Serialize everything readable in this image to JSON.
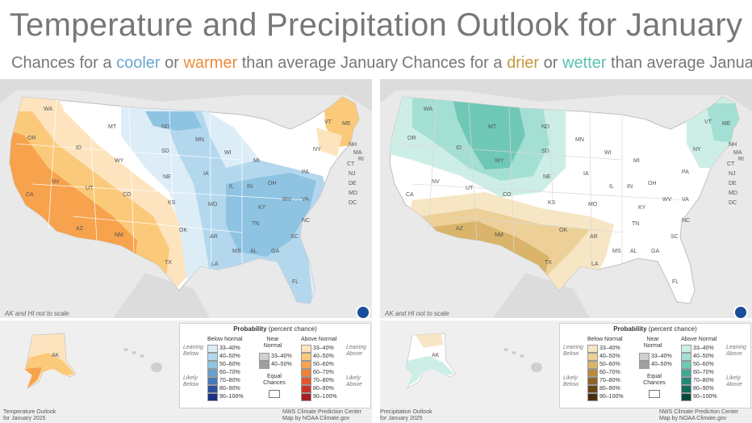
{
  "title": "Temperature and Precipitation Outlook for January",
  "temperature": {
    "subtitle": {
      "prefix": "Chances for a ",
      "cooler": "cooler",
      "or": " or ",
      "warmer": "warmer",
      "suffix": " than average January"
    },
    "note": "AK and HI not to scale",
    "credit_left": [
      "Temperature Outlook",
      "for January 2025"
    ],
    "credit_right": [
      "NWS Climate Prediction Center",
      "Map by NOAA Climate.gov"
    ],
    "state_labels": [
      "WA",
      "OR",
      "CA",
      "NV",
      "ID",
      "UT",
      "AZ",
      "NM",
      "CO",
      "WY",
      "MT",
      "ND",
      "SD",
      "NE",
      "KS",
      "OK",
      "TX",
      "MN",
      "IA",
      "MO",
      "AR",
      "LA",
      "WI",
      "IL",
      "IN",
      "MI",
      "OH",
      "KY",
      "TN",
      "MS",
      "AL",
      "GA",
      "FL",
      "SC",
      "NC",
      "VA",
      "WV",
      "PA",
      "NY",
      "VT",
      "ME",
      "NH",
      "MA",
      "CT",
      "NJ",
      "DE",
      "MD",
      "DC",
      "RI",
      "AK"
    ],
    "legend": {
      "title": "Probability",
      "title_suffix": "(percent chance)",
      "below_header": "Below Normal",
      "near_header": "Near Normal",
      "above_header": "Above Normal",
      "leaning_below": "Leaning Below",
      "likely_below": "Likely Below",
      "leaning_above": "Leaning Above",
      "likely_above": "Likely Above",
      "ranges": [
        "33–40%",
        "40–50%",
        "50–60%",
        "60–70%",
        "70–80%",
        "80–90%",
        "90–100%"
      ],
      "near_ranges": [
        "33–40%",
        "40–50%"
      ],
      "equal": "Equal Chances",
      "below_colors": [
        "#dcedf7",
        "#b3d8ee",
        "#8ec3e2",
        "#6a9fd0",
        "#4778b8",
        "#2e4f9e",
        "#1d2f86"
      ],
      "above_colors": [
        "#fde4bf",
        "#fbc97a",
        "#f7a24d",
        "#ef7f3a",
        "#e2562c",
        "#c93327",
        "#a51f22"
      ],
      "near_colors": [
        "#cfcfcf",
        "#a0a0a0"
      ]
    }
  },
  "precipitation": {
    "subtitle": {
      "prefix": "Chances for a ",
      "drier": "drier",
      "or": " or ",
      "wetter": "wetter",
      "suffix": " than average January"
    },
    "note": "AK and HI not to scale",
    "credit_left": [
      "Precipitation Outlook",
      "for January 2025"
    ],
    "credit_right": [
      "NWS Climate Prediction Center",
      "Map by NOAA Climate.gov"
    ],
    "state_labels": [
      "WA",
      "OR",
      "CA",
      "NV",
      "ID",
      "UT",
      "AZ",
      "NM",
      "CO",
      "WY",
      "MT",
      "ND",
      "SD",
      "NE",
      "KS",
      "OK",
      "TX",
      "MN",
      "IA",
      "MO",
      "AR",
      "LA",
      "WI",
      "IL",
      "IN",
      "MI",
      "OH",
      "KY",
      "TN",
      "MS",
      "AL",
      "GA",
      "FL",
      "SC",
      "NC",
      "VA",
      "WV",
      "PA",
      "NY",
      "VT",
      "ME",
      "NH",
      "MA",
      "CT",
      "NJ",
      "DE",
      "MD",
      "DC",
      "RI",
      "AK"
    ],
    "legend": {
      "title": "Probability",
      "title_suffix": "(percent chance)",
      "below_header": "Below Normal",
      "near_header": "Near Normal",
      "above_header": "Above Normal",
      "leaning_below": "Leaning Below",
      "likely_below": "Likely Below",
      "leaning_above": "Leaning Above",
      "likely_above": "Likely Above",
      "ranges": [
        "33–40%",
        "40–50%",
        "50–60%",
        "60–70%",
        "70–80%",
        "80–90%",
        "90–100%"
      ],
      "near_ranges": [
        "33–40%",
        "40–50%"
      ],
      "equal": "Equal Chances",
      "below_colors": [
        "#f6e6c4",
        "#ecd098",
        "#d9b46a",
        "#b78a3c",
        "#8d6327",
        "#6a4518",
        "#4a2d0c"
      ],
      "above_colors": [
        "#cdeee6",
        "#a4dfd3",
        "#6fc8b5",
        "#3ea997",
        "#1f8a78",
        "#0e6c5c",
        "#044a3e"
      ],
      "near_colors": [
        "#cfcfcf",
        "#a0a0a0"
      ]
    }
  }
}
